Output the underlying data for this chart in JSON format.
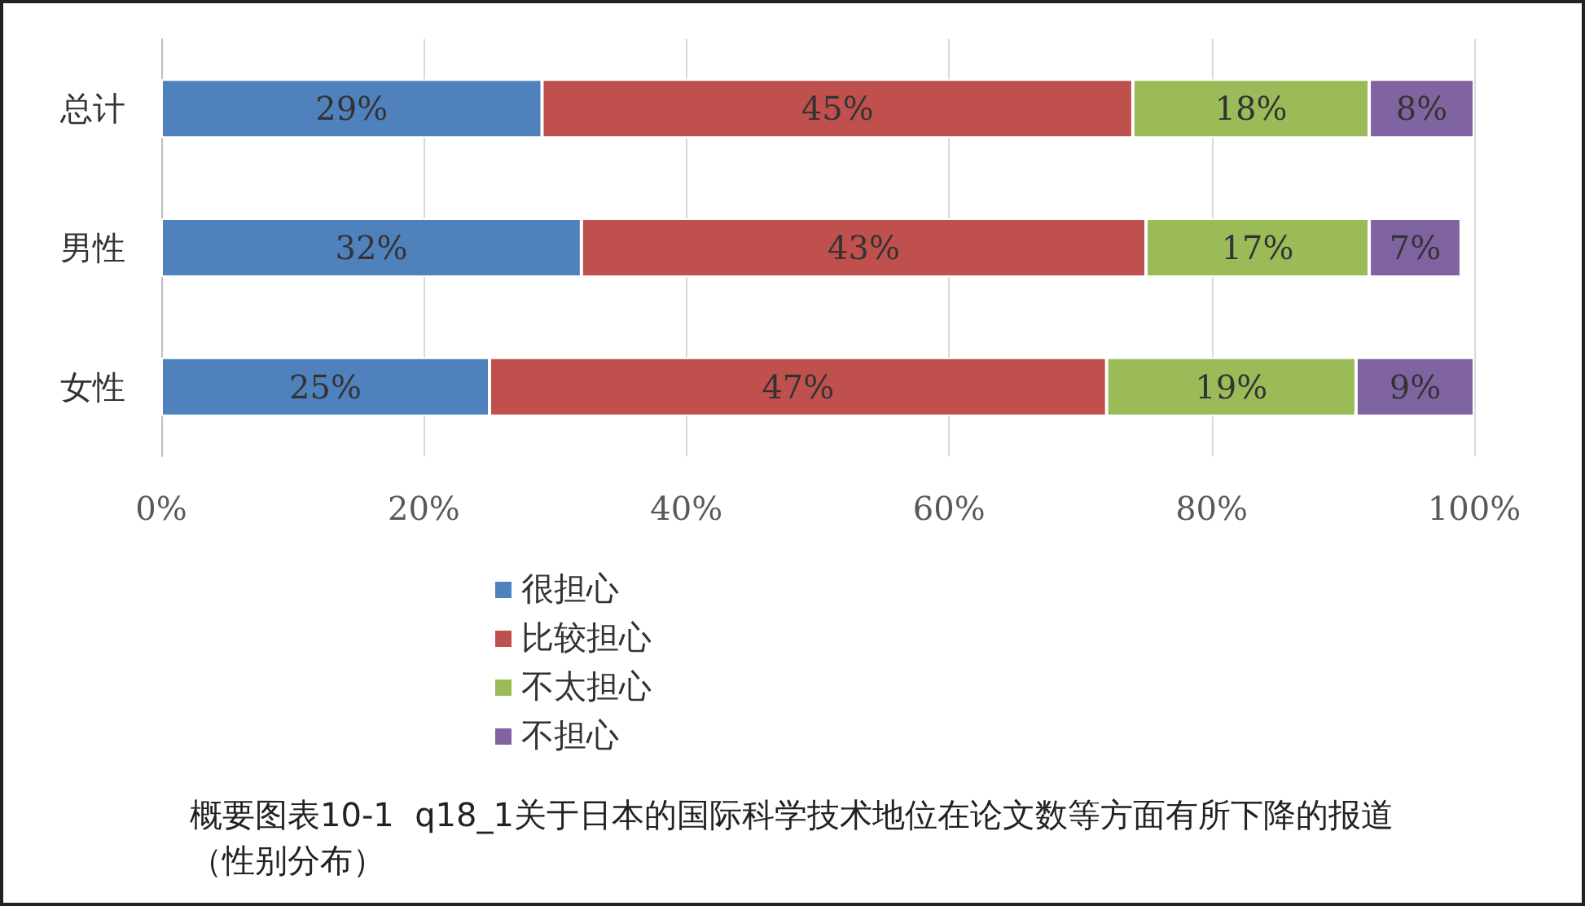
{
  "chart_data": {
    "type": "bar",
    "orientation": "horizontal",
    "stacked": true,
    "categories": [
      "总计",
      "男性",
      "女性"
    ],
    "series": [
      {
        "name": "很担心",
        "color": "#4f81bd",
        "values": [
          29,
          32,
          25
        ],
        "value_labels": [
          "29%",
          "32%",
          "25%"
        ]
      },
      {
        "name": "比较担心",
        "color": "#c0504d",
        "values": [
          45,
          43,
          47
        ],
        "value_labels": [
          "45%",
          "43%",
          "47%"
        ]
      },
      {
        "name": "不太担心",
        "color": "#9bbb59",
        "values": [
          18,
          17,
          19
        ],
        "value_labels": [
          "18%",
          "17%",
          "19%"
        ]
      },
      {
        "name": "不担心",
        "color": "#8064a2",
        "values": [
          8,
          7,
          9
        ],
        "value_labels": [
          "8%",
          "7%",
          "9%"
        ]
      }
    ],
    "xlim": [
      0,
      100
    ],
    "xticks": [
      {
        "value": 0,
        "label": "0%"
      },
      {
        "value": 20,
        "label": "20%"
      },
      {
        "value": 40,
        "label": "40%"
      },
      {
        "value": 60,
        "label": "60%"
      },
      {
        "value": 80,
        "label": "80%"
      },
      {
        "value": 100,
        "label": "100%"
      }
    ],
    "grid": "x",
    "legend": "bottom",
    "annotations": [
      "概要图表10-1  q18_1关于日本的国际科学技术地位在论文数等方面有所下降的报道（性别分布）"
    ]
  }
}
